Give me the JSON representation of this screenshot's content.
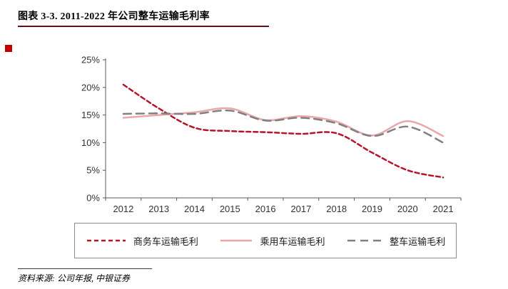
{
  "page": {
    "title": "图表 3-3. 2011-2022 年公司整车运输毛利率",
    "source": "资料来源: 公司年报, 中银证券"
  },
  "chart_data": {
    "type": "line",
    "title": "图表 3-3. 2011-2022 年公司整车运输毛利率",
    "categories": [
      "2012",
      "2013",
      "2014",
      "2015",
      "2016",
      "2017",
      "2018",
      "2019",
      "2020",
      "2021"
    ],
    "series": [
      {
        "name": "商务车运输毛利",
        "color": "#b5152b",
        "style": "dashed-dense",
        "values": [
          20.5,
          16.2,
          12.7,
          12.1,
          11.9,
          11.6,
          11.7,
          8.2,
          5.0,
          3.7
        ]
      },
      {
        "name": "乘用车运输毛利",
        "color": "#eaa6ab",
        "style": "solid",
        "values": [
          14.5,
          15.0,
          15.5,
          16.2,
          14.1,
          14.8,
          13.8,
          11.3,
          13.9,
          11.2
        ]
      },
      {
        "name": "整车运输毛利",
        "color": "#808080",
        "style": "dashed",
        "values": [
          15.2,
          15.3,
          15.2,
          15.8,
          14.0,
          14.5,
          13.5,
          11.2,
          12.9,
          10.0
        ]
      }
    ],
    "ylim": [
      0,
      25
    ],
    "ytick_labels": [
      "0%",
      "5%",
      "10%",
      "15%",
      "20%",
      "25%"
    ],
    "ytick_step": 5,
    "grid": false,
    "legend_position": "bottom"
  }
}
